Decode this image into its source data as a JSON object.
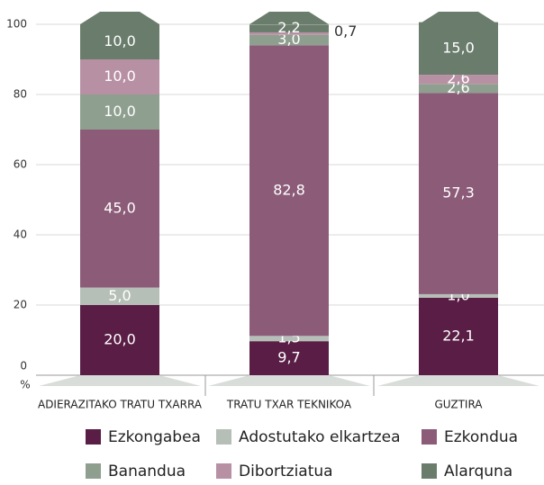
{
  "chart_data": {
    "type": "stacked_bar",
    "categories": [
      "ADIERAZITAKO TRATU TXARRA",
      "TRATU TXAR TEKNIKOA",
      "GUZTIRA"
    ],
    "y_axis_label": "%",
    "ylim": [
      0,
      100
    ],
    "yticks": [
      0,
      20,
      40,
      60,
      80,
      100
    ],
    "grid": true,
    "series": [
      {
        "name": "Ezkongabea",
        "color": "#5a1e46",
        "values": [
          20.0,
          9.7,
          22.1
        ],
        "value_labels": [
          "20,0",
          "9,7",
          "22,1"
        ]
      },
      {
        "name": "Adostutako elkartzea",
        "color": "#b5beb7",
        "values": [
          5.0,
          1.5,
          1.0
        ],
        "value_labels": [
          "5,0",
          "1,5",
          "1,0"
        ]
      },
      {
        "name": "Ezkondua",
        "color": "#8b5b78",
        "values": [
          45.0,
          82.8,
          57.3
        ],
        "value_labels": [
          "45,0",
          "82,8",
          "57,3"
        ]
      },
      {
        "name": "Banandua",
        "color": "#8e9f8f",
        "values": [
          10.0,
          3.0,
          2.6
        ],
        "value_labels": [
          "10,0",
          "3,0",
          "2,6"
        ]
      },
      {
        "name": "Dibortziatua",
        "color": "#b890a4",
        "values": [
          10.0,
          0.7,
          2.6
        ],
        "value_labels": [
          "10,0",
          "0,7",
          "2,6"
        ]
      },
      {
        "name": "Alarquna",
        "color": "#6a7c6c",
        "values": [
          10.0,
          2.2,
          15.0
        ],
        "value_labels": [
          "10,0",
          "2,2",
          "15,0"
        ]
      }
    ]
  }
}
